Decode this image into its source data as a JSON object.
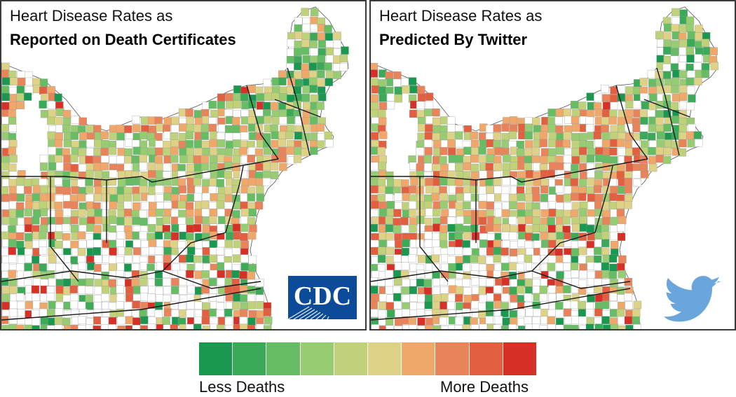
{
  "left_panel": {
    "title_line1": "Heart Disease Rates as",
    "title_line2": "Reported on Death Certificates",
    "logo_text": "CDC",
    "logo_icon": "cdc-logo"
  },
  "right_panel": {
    "title_line1": "Heart Disease Rates as",
    "title_line2": "Predicted By Twitter",
    "logo_icon": "twitter-bird-icon"
  },
  "legend": {
    "colors": [
      "#1a9850",
      "#3aaa58",
      "#66bd63",
      "#97cc72",
      "#bfd27a",
      "#ddd285",
      "#f0a86a",
      "#e9835a",
      "#e2603f",
      "#d73027"
    ],
    "low_label": "Less Deaths",
    "high_label": "More Deaths"
  },
  "colors": {
    "border": "#3a3a3a",
    "no_data": "#ffffff",
    "cdc_blue": "#0c4a9a",
    "twitter_blue": "#6aa5dc"
  }
}
